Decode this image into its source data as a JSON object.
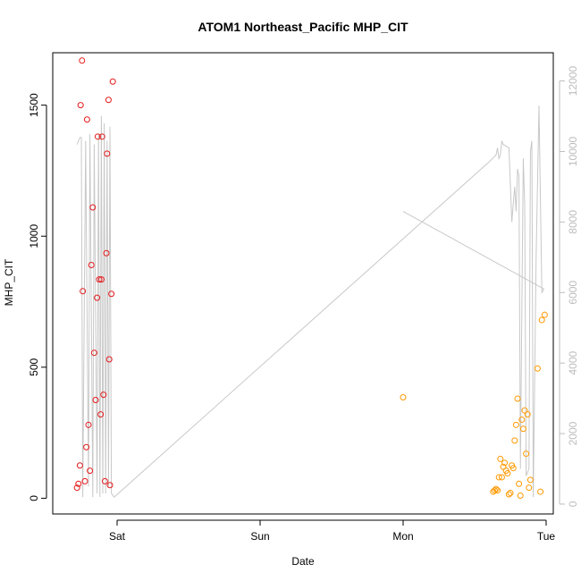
{
  "chart_data": {
    "type": "scatter",
    "title": "ATOM1 Northeast_Pacific MHP_CIT",
    "xlabel": "Date",
    "ylabel": "MHP_CIT",
    "x_unit": "days",
    "x_ticks": [
      {
        "label": "Sat",
        "value": 1.0
      },
      {
        "label": "Sun",
        "value": 2.0
      },
      {
        "label": "Mon",
        "value": 3.0
      },
      {
        "label": "Tue",
        "value": 4.0
      }
    ],
    "xlim": [
      0.55,
      4.05
    ],
    "ylim": [
      -60,
      1700
    ],
    "y_ticks": [
      0,
      500,
      1000,
      1500
    ],
    "y2lim": [
      -280,
      12800
    ],
    "y2_ticks": [
      0,
      2000,
      4000,
      6000,
      8000,
      10000,
      12000
    ],
    "grid": false,
    "colors": {
      "series1": "#e41a1c",
      "series2": "#ff9900",
      "line": "#c8c8c8",
      "right_axis": "#bdbdbd"
    },
    "series": [
      {
        "color": "#e41a1c",
        "points": [
          [
            0.72,
            40
          ],
          [
            0.73,
            55
          ],
          [
            0.74,
            125
          ],
          [
            0.745,
            1500
          ],
          [
            0.755,
            1670
          ],
          [
            0.76,
            790
          ],
          [
            0.775,
            65
          ],
          [
            0.785,
            195
          ],
          [
            0.79,
            1445
          ],
          [
            0.8,
            280
          ],
          [
            0.81,
            105
          ],
          [
            0.82,
            890
          ],
          [
            0.83,
            1110
          ],
          [
            0.84,
            555
          ],
          [
            0.85,
            375
          ],
          [
            0.86,
            765
          ],
          [
            0.865,
            1380
          ],
          [
            0.875,
            835
          ],
          [
            0.885,
            320
          ],
          [
            0.89,
            835
          ],
          [
            0.895,
            1380
          ],
          [
            0.905,
            395
          ],
          [
            0.915,
            65
          ],
          [
            0.925,
            935
          ],
          [
            0.93,
            1315
          ],
          [
            0.94,
            1520
          ],
          [
            0.945,
            530
          ],
          [
            0.95,
            50
          ],
          [
            0.96,
            780
          ],
          [
            0.97,
            1590
          ]
        ]
      },
      {
        "color": "#ff9900",
        "points": [
          [
            3.0,
            385
          ],
          [
            3.63,
            25
          ],
          [
            3.64,
            30
          ],
          [
            3.65,
            35
          ],
          [
            3.66,
            30
          ],
          [
            3.67,
            80
          ],
          [
            3.68,
            150
          ],
          [
            3.69,
            80
          ],
          [
            3.7,
            120
          ],
          [
            3.71,
            135
          ],
          [
            3.72,
            105
          ],
          [
            3.73,
            95
          ],
          [
            3.74,
            15
          ],
          [
            3.75,
            20
          ],
          [
            3.76,
            125
          ],
          [
            3.77,
            115
          ],
          [
            3.78,
            220
          ],
          [
            3.79,
            280
          ],
          [
            3.8,
            380
          ],
          [
            3.81,
            55
          ],
          [
            3.82,
            10
          ],
          [
            3.83,
            300
          ],
          [
            3.84,
            265
          ],
          [
            3.85,
            335
          ],
          [
            3.86,
            170
          ],
          [
            3.87,
            320
          ],
          [
            3.88,
            40
          ],
          [
            3.89,
            70
          ],
          [
            3.94,
            495
          ],
          [
            3.96,
            25
          ],
          [
            3.97,
            680
          ],
          [
            3.99,
            700
          ]
        ]
      }
    ],
    "secondary_line": {
      "color": "#c8c8c8",
      "points": [
        [
          0.72,
          10200
        ],
        [
          0.74,
          10400
        ],
        [
          0.75,
          10400
        ],
        [
          0.76,
          200
        ],
        [
          0.78,
          10300
        ],
        [
          0.8,
          500
        ],
        [
          0.81,
          10500
        ],
        [
          0.83,
          200
        ],
        [
          0.84,
          10200
        ],
        [
          0.86,
          300
        ],
        [
          0.87,
          10500
        ],
        [
          0.88,
          200
        ],
        [
          0.89,
          11000
        ],
        [
          0.9,
          300
        ],
        [
          0.91,
          10800
        ],
        [
          0.92,
          300
        ],
        [
          0.93,
          10300
        ],
        [
          0.94,
          500
        ],
        [
          0.95,
          10700
        ],
        [
          0.96,
          300
        ],
        [
          0.98,
          200
        ],
        [
          3.6,
          9700
        ],
        [
          3.65,
          9900
        ],
        [
          3.66,
          10100
        ],
        [
          3.67,
          9800
        ],
        [
          3.68,
          9900
        ],
        [
          3.69,
          10300
        ],
        [
          3.7,
          10200
        ],
        [
          3.74,
          10100
        ],
        [
          3.76,
          8000
        ],
        [
          3.77,
          8500
        ],
        [
          3.78,
          9000
        ],
        [
          3.79,
          8300
        ],
        [
          3.8,
          9500
        ],
        [
          3.81,
          9300
        ],
        [
          3.82,
          1000
        ],
        [
          3.84,
          9800
        ],
        [
          3.85,
          8500
        ],
        [
          3.86,
          800
        ],
        [
          3.88,
          1000
        ],
        [
          3.89,
          10000
        ],
        [
          3.9,
          10300
        ],
        [
          3.91,
          200
        ],
        [
          3.93,
          7000
        ],
        [
          3.95,
          11300
        ],
        [
          3.97,
          6000
        ],
        [
          3.985,
          6100
        ]
      ],
      "extra_segment": [
        [
          3.0,
          8300
        ],
        [
          3.985,
          6100
        ]
      ]
    }
  }
}
